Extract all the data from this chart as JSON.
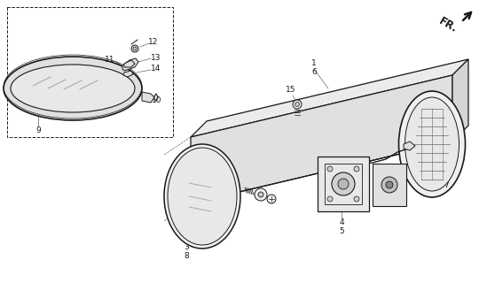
{
  "bg_color": "#ffffff",
  "lc": "#1a1a1a",
  "gc": "#666666",
  "fill_light": "#f0f0f0",
  "fill_mid": "#e0e0e0",
  "fill_dark": "#c8c8c8",
  "fill_glass": "#e8e8e8",
  "fr_label": "FR."
}
